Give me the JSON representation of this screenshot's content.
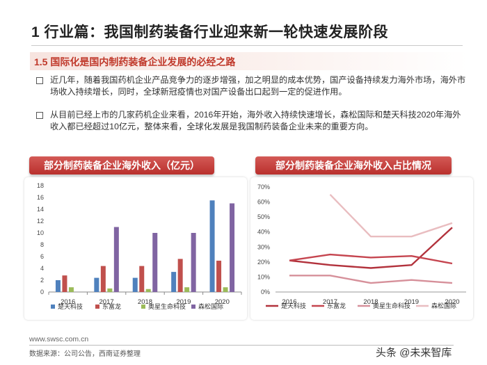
{
  "page": {
    "title": "1 行业篇：我国制药装备行业迎来新一轮快速发展阶段",
    "subheading": "1.5 国际化是国内制药装备企业发展的必经之路",
    "bullets": [
      "近几年，随着我国药机企业产品竞争力的逐步增强，加之明显的成本优势，国产设备持续发力海外市场，海外市场收入持续增长，同时，全球新冠疫情也对国产设备出口起到一定的促进作用。",
      "从目前已经上市的几家药机企业来看，2016年开始，海外收入持续快速增长，森松国际和楚天科技2020年海外收入都已经超过10亿元，整体来看，全球化发展是我国制药装备企业未来的重要方向。"
    ],
    "footer_url": "www.swsc.com.cn",
    "footer_source": "数据来源：公司公告，西南证券整理",
    "watermark": "头条 @未来智库"
  },
  "chart_data": [
    {
      "type": "bar",
      "title": "部分制药装备企业海外收入（亿元）",
      "categories": [
        "2016",
        "2017",
        "2018",
        "2019",
        "2020"
      ],
      "ylim": [
        0,
        18
      ],
      "yticks": [
        "0",
        "2",
        "4",
        "6",
        "8",
        "10",
        "12",
        "14",
        "16",
        "18"
      ],
      "series": [
        {
          "name": "楚天科技",
          "color": "#4f81bd",
          "values": [
            2.0,
            2.4,
            2.4,
            3.4,
            15.5
          ]
        },
        {
          "name": "东富龙",
          "color": "#c0504d",
          "values": [
            2.8,
            4.4,
            4.4,
            5.6,
            5.3
          ]
        },
        {
          "name": "奥星生命科技",
          "color": "#9bbb59",
          "values": [
            0.8,
            0.6,
            0.5,
            0.8,
            0.8
          ]
        },
        {
          "name": "森松国际",
          "color": "#8064a2",
          "values": [
            null,
            11.0,
            10.0,
            10.0,
            15.0
          ]
        }
      ]
    },
    {
      "type": "line",
      "title": "部分制药装备企业海外收入占比情况",
      "categories": [
        "2016",
        "2017",
        "2018",
        "2019",
        "2020"
      ],
      "ylim": [
        0,
        70
      ],
      "yticks": [
        "0%",
        "10%",
        "20%",
        "30%",
        "40%",
        "50%",
        "60%",
        "70%"
      ],
      "series": [
        {
          "name": "楚天科技",
          "color": "#b2323c",
          "values": [
            21,
            18,
            16,
            18,
            43
          ]
        },
        {
          "name": "东富龙",
          "color": "#c5454f",
          "values": [
            21,
            25,
            23,
            24,
            19
          ]
        },
        {
          "name": "奥星生命科技",
          "color": "#d6909a",
          "values": [
            11,
            11,
            6,
            8,
            6
          ]
        },
        {
          "name": "森松国际",
          "color": "#e9bdc0",
          "values": [
            null,
            65,
            37,
            37,
            46
          ]
        }
      ]
    }
  ]
}
